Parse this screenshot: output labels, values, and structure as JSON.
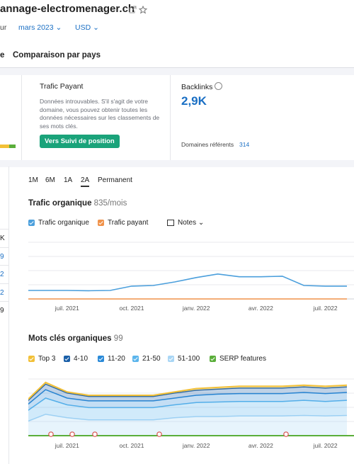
{
  "header": {
    "domain": "annage-electromenager.ch",
    "prefix": "ur",
    "date": "mars 2023",
    "currency": "USD"
  },
  "tabs": [
    "e",
    "Comparaison par pays"
  ],
  "paid_card": {
    "title": "Trafic Payant",
    "description": "Données introuvables. S'il s'agit de votre domaine, vous pouvez obtenir toutes les données nécessaires sur les classements de ses mots clés.",
    "button": "Vers Suivi de position"
  },
  "backlinks_card": {
    "title": "Backlinks",
    "value": "2,9K",
    "referring_label": "Domaines référents",
    "referring_value": 314
  },
  "side_list": [
    "K",
    "9",
    "2",
    "2",
    "9"
  ],
  "periods": [
    "1M",
    "6M",
    "1A",
    "2A",
    "Permanent"
  ],
  "active_period": 3,
  "chart_data": [
    {
      "type": "line",
      "title": "Trafic organique",
      "subtitle": "835/mois",
      "notes": "Notes",
      "categories": [
        null,
        null,
        "juil. 2021",
        null,
        null,
        "oct. 2021",
        null,
        null,
        "janv. 2022",
        null,
        null,
        "avr. 2022",
        null,
        null,
        "juil. 2022",
        null
      ],
      "series": [
        {
          "name": "Trafic organique",
          "color": "#4b9fdc",
          "values": [
            550,
            550,
            550,
            530,
            550,
            830,
            870,
            1100,
            1380,
            1610,
            1430,
            1430,
            1470,
            870,
            830,
            830
          ]
        },
        {
          "name": "Trafic payant",
          "color": "#f0924a",
          "values": [
            0,
            0,
            0,
            0,
            0,
            0,
            0,
            0,
            0,
            0,
            0,
            0,
            0,
            0,
            0,
            0
          ]
        }
      ]
    },
    {
      "type": "stacked_area",
      "title": "Mots clés organiques",
      "subtitle": 99,
      "categories": [
        null,
        null,
        "juil. 2021",
        null,
        null,
        "oct. 2021",
        null,
        null,
        "janv. 2022",
        null,
        null,
        "avr. 2022",
        null,
        null,
        "juil. 2022",
        null
      ],
      "series": [
        {
          "name": "51-100",
          "color": "#a9d6f5",
          "values": [
            23,
            38,
            32,
            28,
            28,
            28,
            28,
            32,
            34,
            34,
            35,
            35,
            35,
            36,
            35,
            36
          ]
        },
        {
          "name": "21-50",
          "color": "#5bb5ec",
          "values": [
            17,
            29,
            23,
            22,
            22,
            22,
            22,
            23,
            25,
            26,
            26,
            26,
            26,
            27,
            26,
            27
          ]
        },
        {
          "name": "11-20",
          "color": "#2a8ad8",
          "values": [
            10,
            15,
            12,
            12,
            12,
            12,
            12,
            12,
            13,
            14,
            14,
            14,
            14,
            14,
            14,
            14
          ]
        },
        {
          "name": "4-10",
          "color": "#1a5fa8",
          "values": [
            6,
            10,
            9,
            8,
            8,
            8,
            8,
            9,
            9,
            9,
            10,
            10,
            10,
            10,
            10,
            10
          ]
        },
        {
          "name": "Top 3",
          "color": "#f2c037",
          "values": [
            2,
            3,
            2,
            2,
            2,
            2,
            2,
            2,
            3,
            3,
            3,
            3,
            3,
            3,
            3,
            3
          ]
        }
      ],
      "legend_extra": {
        "name": "SERP features",
        "color": "#5aae3a"
      }
    }
  ]
}
